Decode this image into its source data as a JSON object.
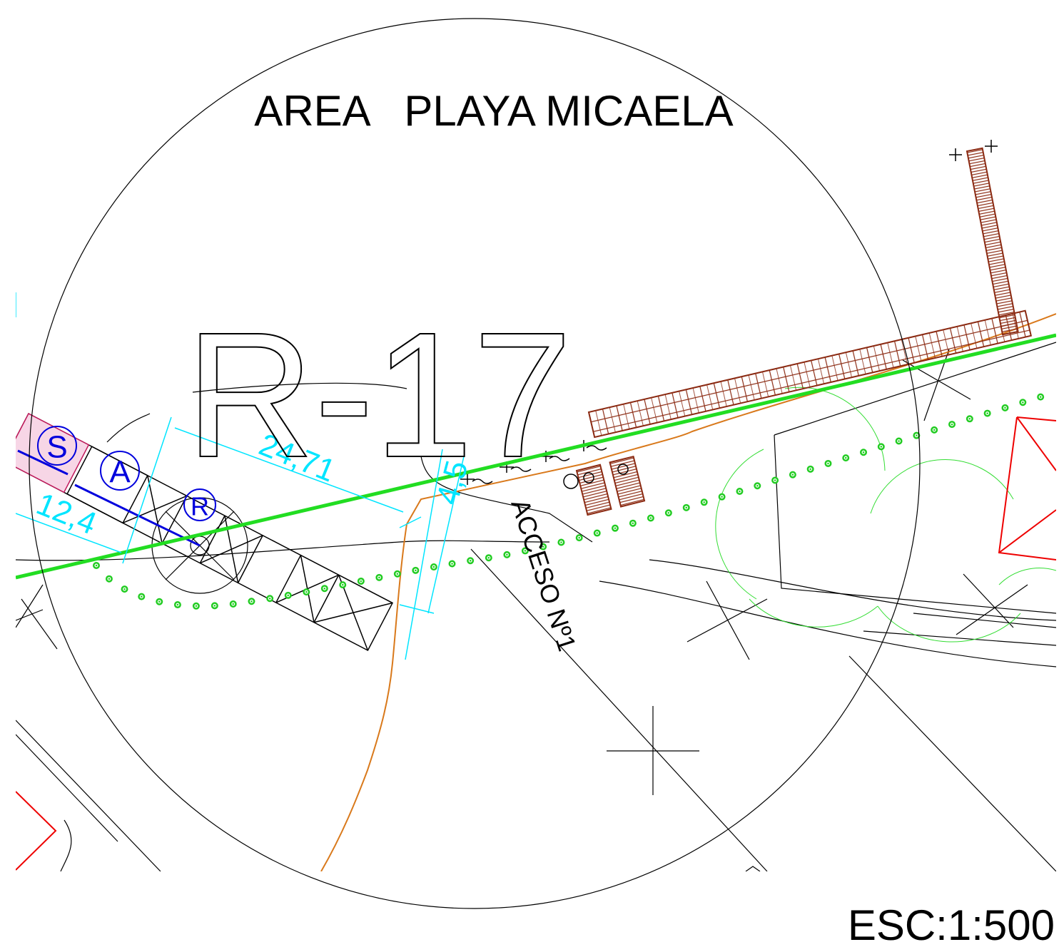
{
  "title": "AREA   PLAYA MICAELA",
  "zone_label": "R-17",
  "markers": [
    "S",
    "A",
    "R"
  ],
  "dimensions": [
    "24,71",
    "12,4",
    "4,5"
  ],
  "access_label": "ACCESO Nº1",
  "scale": "ESC:1:500"
}
